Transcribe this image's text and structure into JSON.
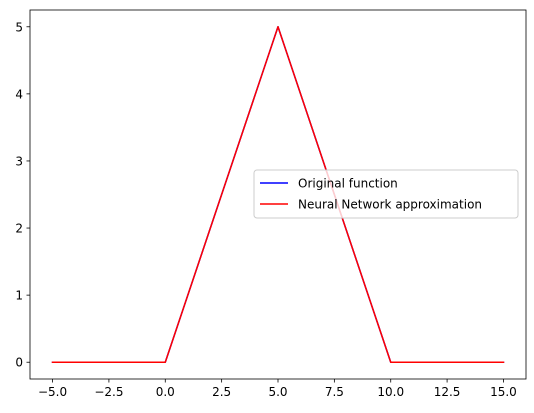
{
  "chart_data": {
    "type": "line",
    "title": "",
    "xlabel": "",
    "ylabel": "",
    "xlim": [
      -6.0,
      16.0
    ],
    "ylim": [
      -0.25,
      5.25
    ],
    "x_ticks": [
      -5.0,
      -2.5,
      0.0,
      2.5,
      5.0,
      7.5,
      10.0,
      12.5,
      15.0
    ],
    "x_tick_labels": [
      "−5.0",
      "−2.5",
      "0.0",
      "2.5",
      "5.0",
      "7.5",
      "10.0",
      "12.5",
      "15.0"
    ],
    "y_ticks": [
      0,
      1,
      2,
      3,
      4,
      5
    ],
    "y_tick_labels": [
      "0",
      "1",
      "2",
      "3",
      "4",
      "5"
    ],
    "grid": false,
    "legend_position": "center-right",
    "series": [
      {
        "name": "Original function",
        "color": "#0000ff",
        "x": [
          -5,
          0,
          5,
          10,
          15
        ],
        "y": [
          0,
          0,
          5,
          0,
          0
        ]
      },
      {
        "name": "Neural Network approximation",
        "color": "#ff0000",
        "x": [
          -5,
          0,
          5,
          10,
          15
        ],
        "y": [
          0,
          0,
          5,
          0,
          0
        ]
      }
    ]
  }
}
